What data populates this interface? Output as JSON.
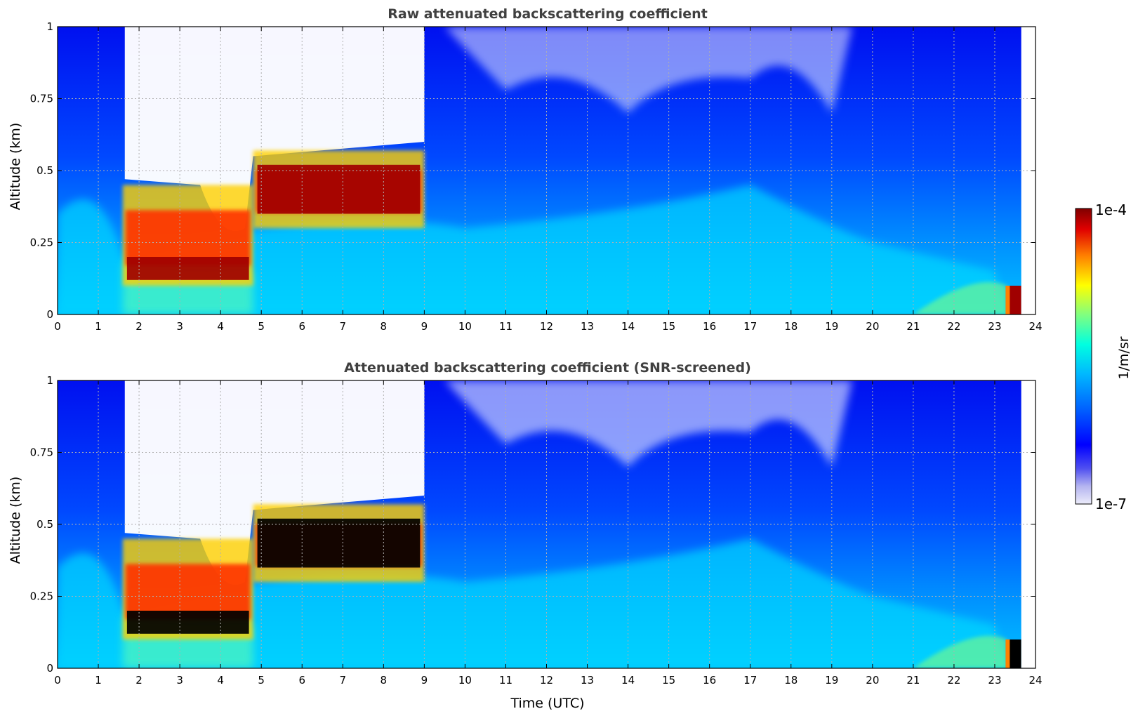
{
  "chart_data": [
    {
      "type": "heatmap",
      "title": "Raw attenuated backscattering coefficient",
      "xlabel": "",
      "ylabel": "Altitude (km)",
      "xlim": [
        0,
        24
      ],
      "ylim": [
        0,
        1
      ],
      "xticks": [
        "0",
        "1",
        "2",
        "3",
        "4",
        "5",
        "6",
        "7",
        "8",
        "9",
        "10",
        "11",
        "12",
        "13",
        "14",
        "15",
        "16",
        "17",
        "18",
        "19",
        "20",
        "21",
        "22",
        "23",
        "24"
      ],
      "yticks": [
        "0",
        "0.25",
        "0.5",
        "0.75",
        "1"
      ],
      "grid": true,
      "colormap": "jet",
      "log_scale": true,
      "features": [
        {
          "kind": "cloud_layer",
          "x": [
            1.6,
            4.8
          ],
          "base": 0.1,
          "top": 0.45
        },
        {
          "kind": "cloud_layer",
          "x": [
            4.8,
            9.0
          ],
          "base": 0.3,
          "top": 0.57
        },
        {
          "kind": "surface_signal",
          "x": [
            23.3,
            23.65
          ],
          "base": 0.0,
          "top": 0.1
        }
      ]
    },
    {
      "type": "heatmap",
      "title": "Attenuated backscattering coefficient (SNR-screened)",
      "xlabel": "Time (UTC)",
      "ylabel": "Altitude (km)",
      "xlim": [
        0,
        24
      ],
      "ylim": [
        0,
        1
      ],
      "xticks": [
        "0",
        "1",
        "2",
        "3",
        "4",
        "5",
        "6",
        "7",
        "8",
        "9",
        "10",
        "11",
        "12",
        "13",
        "14",
        "15",
        "16",
        "17",
        "18",
        "19",
        "20",
        "21",
        "22",
        "23",
        "24"
      ],
      "yticks": [
        "0",
        "0.25",
        "0.5",
        "0.75",
        "1"
      ],
      "grid": true,
      "colormap": "jet",
      "log_scale": true,
      "saturated_color": "#000000",
      "features": [
        {
          "kind": "cloud_layer",
          "x": [
            1.6,
            4.8
          ],
          "base": 0.1,
          "top": 0.45
        },
        {
          "kind": "cloud_layer",
          "x": [
            4.8,
            9.0
          ],
          "base": 0.3,
          "top": 0.57
        },
        {
          "kind": "surface_signal",
          "x": [
            23.3,
            23.65
          ],
          "base": 0.0,
          "top": 0.1
        }
      ]
    }
  ],
  "colorbar": {
    "label": "1/m/sr",
    "max_label": "1e-4",
    "min_label": "1e-7",
    "scale": "log",
    "colors": [
      "#ececfa",
      "#b4b4f0",
      "#7f7fe8",
      "#0000ff",
      "#0050ff",
      "#00a0ff",
      "#00e8ff",
      "#40ffc0",
      "#a0ff60",
      "#ffff00",
      "#ffa000",
      "#ff4000",
      "#d00000",
      "#800000"
    ]
  }
}
